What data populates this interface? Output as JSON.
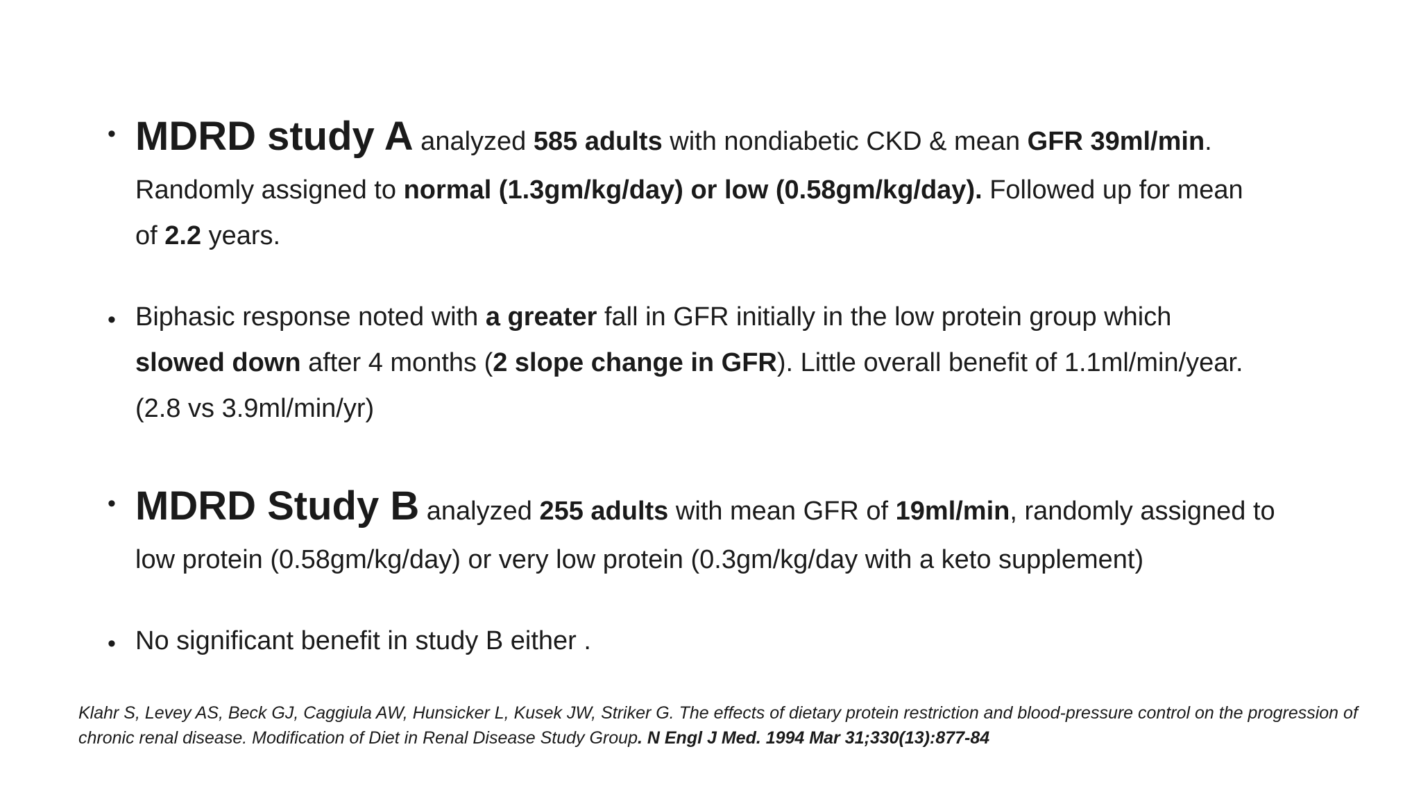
{
  "bullets": [
    {
      "head": "MDRD study A",
      "line1": [
        " analyzed ",
        "585 adults",
        " with nondiabetic CKD & mean ",
        "GFR 39ml/min",
        "."
      ],
      "line2": [
        "Randomly assigned to ",
        "normal (1.3gm/kg/day) or low (0.58gm/kg/day).",
        " Followed up for mean"
      ],
      "line3": [
        "of ",
        "2.2",
        " years."
      ]
    },
    {
      "line1": [
        "Biphasic response noted with ",
        "a greater",
        " fall in GFR initially in the low protein group which"
      ],
      "line2": [
        "slowed down",
        " after 4 months (",
        "2 slope change in GFR",
        "). Little overall benefit of 1.1ml/min/year."
      ],
      "line3": "(2.8 vs 3.9ml/min/yr)"
    },
    {
      "head": "MDRD Study B",
      "line1": [
        " analyzed ",
        "255 adults",
        " with mean GFR of ",
        "19ml/min",
        ", randomly assigned to"
      ],
      "line2": "low protein (0.58gm/kg/day) or very low protein (0.3gm/kg/day with a keto supplement)"
    },
    {
      "line1": "No significant benefit in study B either ."
    }
  ],
  "citation": {
    "text": "Klahr S, Levey AS, Beck GJ, Caggiula AW, Hunsicker L, Kusek JW, Striker G. The effects of dietary protein restriction and blood-pressure control on the progression of chronic renal disease. Modification of Diet in Renal Disease Study Group",
    "source": ". N Engl J Med. 1994 Mar 31;330(13):877-84"
  }
}
